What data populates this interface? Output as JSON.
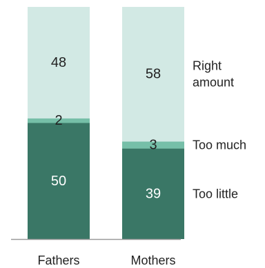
{
  "chart_data": {
    "type": "bar",
    "stacked": true,
    "orientation": "vertical",
    "categories": [
      "Fathers",
      "Mothers"
    ],
    "series": [
      {
        "name": "Too little",
        "values": [
          50,
          39
        ],
        "color": "#3a7766",
        "label_color": "#ffffff"
      },
      {
        "name": "Too much",
        "values": [
          2,
          3
        ],
        "color": "#76bfa8",
        "label_color": "#222222"
      },
      {
        "name": "Right amount",
        "values": [
          48,
          58
        ],
        "color": "#d2e9e4",
        "label_color": "#222222"
      }
    ],
    "legend_labels": [
      {
        "lines": [
          "Too little"
        ]
      },
      {
        "lines": [
          "Too much"
        ]
      },
      {
        "lines": [
          "Right",
          "amount"
        ]
      }
    ],
    "ylim": [
      0,
      100
    ],
    "grid": false,
    "legend_placement": "right, next to the last bar",
    "title": "",
    "xlabel": "",
    "ylabel": ""
  },
  "colors": {
    "baseline": "#999999",
    "text": "#222222"
  }
}
